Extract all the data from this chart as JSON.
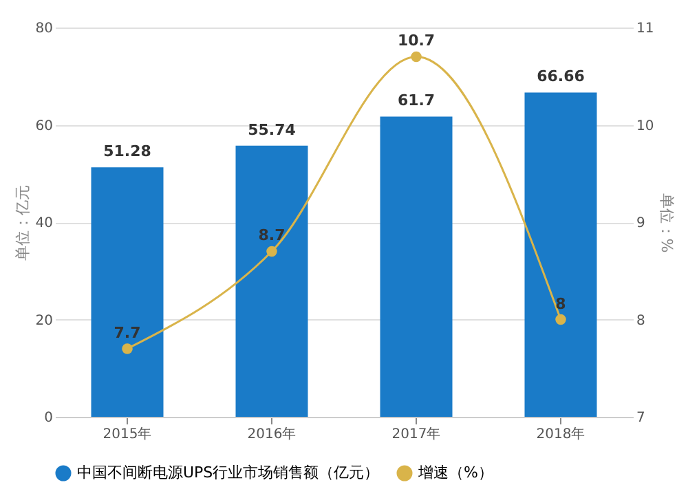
{
  "chart_data": {
    "type": "bar",
    "ylabel": "单位：亿元",
    "y2label": "单位：%",
    "categories": [
      "2015年",
      "2016年",
      "2017年",
      "2018年"
    ],
    "series": [
      {
        "name": "中国不间断电源UPS行业市场销售额（亿元）",
        "color": "#1a7bc8",
        "values": [
          51.28,
          55.74,
          61.7,
          66.66
        ]
      },
      {
        "name": "增速（%）",
        "type": "line",
        "axis": "y2",
        "color": "#d9b44a",
        "values": [
          7.7,
          8.7,
          10.7,
          8
        ],
        "marker": "circle"
      }
    ],
    "ylim": [
      0,
      80
    ],
    "yticks": [
      0,
      20,
      40,
      60,
      80
    ],
    "y2lim": [
      7,
      11
    ],
    "y2ticks": [
      7,
      8,
      9,
      10,
      11
    ],
    "grid": "y",
    "legend": "bottom",
    "data_labels": true
  }
}
